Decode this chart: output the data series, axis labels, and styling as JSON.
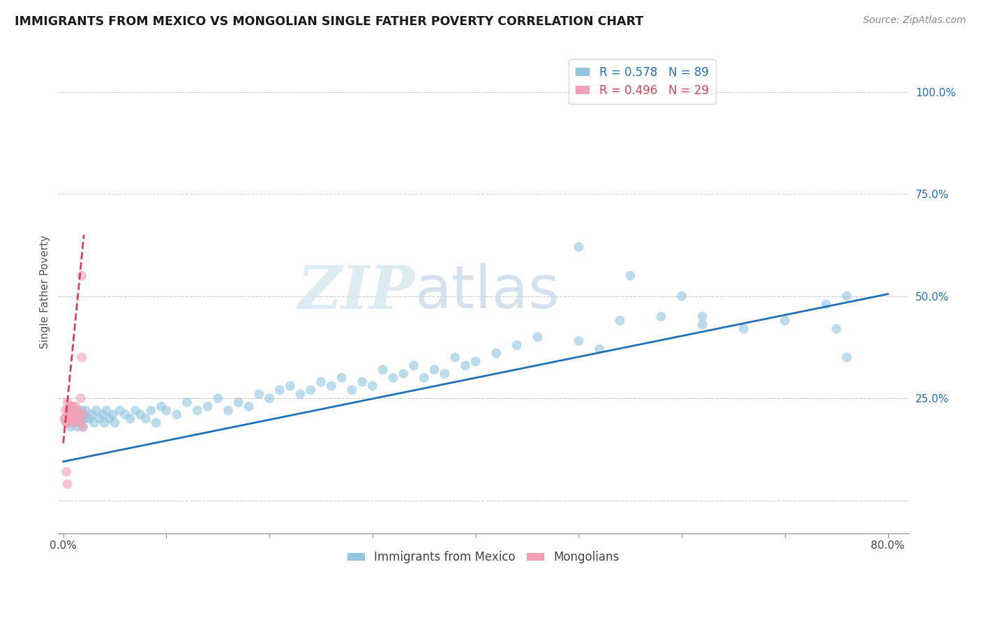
{
  "title": "IMMIGRANTS FROM MEXICO VS MONGOLIAN SINGLE FATHER POVERTY CORRELATION CHART",
  "source": "Source: ZipAtlas.com",
  "ylabel": "Single Father Poverty",
  "xlim": [
    -0.005,
    0.82
  ],
  "ylim": [
    -0.08,
    1.1
  ],
  "yticks": [
    0.0,
    0.25,
    0.5,
    0.75,
    1.0
  ],
  "ytick_labels": [
    "",
    "25.0%",
    "50.0%",
    "75.0%",
    "100.0%"
  ],
  "xticks": [
    0.0,
    0.1,
    0.2,
    0.3,
    0.4,
    0.5,
    0.6,
    0.7,
    0.8
  ],
  "xtick_labels": [
    "0.0%",
    "",
    "",
    "",
    "",
    "",
    "",
    "",
    "80.0%"
  ],
  "blue_R": 0.578,
  "blue_N": 89,
  "pink_R": 0.496,
  "pink_N": 29,
  "blue_color": "#92c5de",
  "pink_color": "#f4a0b5",
  "blue_line_color": "#2171b5",
  "pink_line_color": "#d6405a",
  "watermark_zip": "ZIP",
  "watermark_atlas": "atlas",
  "legend_label_blue": "Immigrants from Mexico",
  "legend_label_pink": "Mongolians",
  "blue_scatter_x": [
    0.002,
    0.004,
    0.005,
    0.006,
    0.007,
    0.008,
    0.009,
    0.01,
    0.011,
    0.012,
    0.013,
    0.014,
    0.015,
    0.016,
    0.017,
    0.018,
    0.019,
    0.02,
    0.021,
    0.022,
    0.025,
    0.028,
    0.03,
    0.032,
    0.035,
    0.038,
    0.04,
    0.042,
    0.045,
    0.048,
    0.05,
    0.055,
    0.06,
    0.065,
    0.07,
    0.075,
    0.08,
    0.085,
    0.09,
    0.095,
    0.1,
    0.11,
    0.12,
    0.13,
    0.14,
    0.15,
    0.16,
    0.17,
    0.18,
    0.19,
    0.2,
    0.21,
    0.22,
    0.23,
    0.24,
    0.25,
    0.26,
    0.27,
    0.28,
    0.29,
    0.3,
    0.31,
    0.32,
    0.33,
    0.34,
    0.35,
    0.36,
    0.37,
    0.38,
    0.39,
    0.4,
    0.42,
    0.44,
    0.46,
    0.5,
    0.52,
    0.54,
    0.58,
    0.62,
    0.66,
    0.7,
    0.74,
    0.76,
    0.5,
    0.55,
    0.6,
    0.62,
    0.75,
    0.76
  ],
  "blue_scatter_y": [
    0.2,
    0.19,
    0.22,
    0.21,
    0.18,
    0.23,
    0.2,
    0.19,
    0.21,
    0.2,
    0.22,
    0.18,
    0.21,
    0.2,
    0.19,
    0.22,
    0.18,
    0.21,
    0.2,
    0.22,
    0.2,
    0.21,
    0.19,
    0.22,
    0.2,
    0.21,
    0.19,
    0.22,
    0.2,
    0.21,
    0.19,
    0.22,
    0.21,
    0.2,
    0.22,
    0.21,
    0.2,
    0.22,
    0.19,
    0.23,
    0.22,
    0.21,
    0.24,
    0.22,
    0.23,
    0.25,
    0.22,
    0.24,
    0.23,
    0.26,
    0.25,
    0.27,
    0.28,
    0.26,
    0.27,
    0.29,
    0.28,
    0.3,
    0.27,
    0.29,
    0.28,
    0.32,
    0.3,
    0.31,
    0.33,
    0.3,
    0.32,
    0.31,
    0.35,
    0.33,
    0.34,
    0.36,
    0.38,
    0.4,
    0.39,
    0.37,
    0.44,
    0.45,
    0.43,
    0.42,
    0.44,
    0.48,
    0.5,
    0.62,
    0.55,
    0.5,
    0.45,
    0.42,
    0.35
  ],
  "pink_scatter_x": [
    0.001,
    0.002,
    0.003,
    0.004,
    0.005,
    0.006,
    0.007,
    0.008,
    0.009,
    0.01,
    0.011,
    0.012,
    0.013,
    0.014,
    0.015,
    0.016,
    0.017,
    0.018,
    0.019,
    0.02,
    0.003,
    0.005,
    0.007,
    0.009,
    0.011,
    0.014,
    0.018,
    0.003,
    0.004
  ],
  "pink_scatter_y": [
    0.2,
    0.22,
    0.19,
    0.24,
    0.21,
    0.23,
    0.2,
    0.22,
    0.19,
    0.21,
    0.2,
    0.23,
    0.21,
    0.2,
    0.22,
    0.19,
    0.25,
    0.35,
    0.18,
    0.21,
    0.19,
    0.22,
    0.2,
    0.23,
    0.21,
    0.2,
    0.55,
    0.07,
    0.04
  ],
  "blue_trend_x": [
    0.0,
    0.8
  ],
  "blue_trend_y": [
    0.095,
    0.505
  ],
  "pink_trend_x": [
    0.0,
    0.02
  ],
  "pink_trend_y": [
    0.14,
    0.65
  ]
}
